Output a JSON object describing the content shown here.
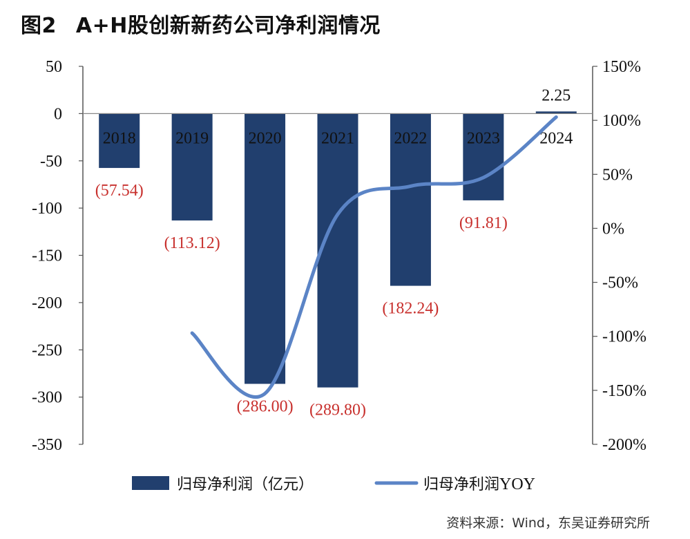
{
  "title_prefix": "图2",
  "title": "A+H股创新新药公司净利润情况",
  "source": "资料来源：Wind，东吴证券研究所",
  "colors": {
    "bar": "#213f6e",
    "line": "#5b84c6",
    "label_neg": "#c8302d",
    "label_pos": "#111111",
    "axis": "#555555"
  },
  "chart_data": {
    "type": "bar",
    "categories": [
      "2018",
      "2019",
      "2020",
      "2021",
      "2022",
      "2023",
      "2024"
    ],
    "series": [
      {
        "name": "归母净利润（亿元）",
        "axis": "left",
        "type": "bar",
        "values": [
          -57.54,
          -113.12,
          -286.0,
          -289.8,
          -182.24,
          -91.81,
          2.25
        ],
        "labels": [
          "(57.54)",
          "(113.12)",
          "(286.00)",
          "(289.80)",
          "(182.24)",
          "(91.81)",
          "2.25"
        ]
      },
      {
        "name": "归母净利润YOY",
        "axis": "right",
        "type": "line",
        "smooth": true,
        "values": [
          null,
          -0.97,
          -1.53,
          0.13,
          0.39,
          0.47,
          1.03
        ]
      }
    ],
    "y_left": {
      "min": -350,
      "max": 50,
      "ticks": [
        "50",
        "0",
        "-50",
        "-100",
        "-150",
        "-200",
        "-250",
        "-300",
        "-350"
      ]
    },
    "y_right": {
      "min": -2.0,
      "max": 1.5,
      "ticks": [
        "150%",
        "100%",
        "50%",
        "0%",
        "-50%",
        "-100%",
        "-150%",
        "-200%"
      ]
    },
    "legend": {
      "position": "bottom",
      "bar_label": "归母净利润（亿元）",
      "line_label_cn": "归母净利润",
      "line_label_en": "YOY"
    },
    "grid": false
  }
}
